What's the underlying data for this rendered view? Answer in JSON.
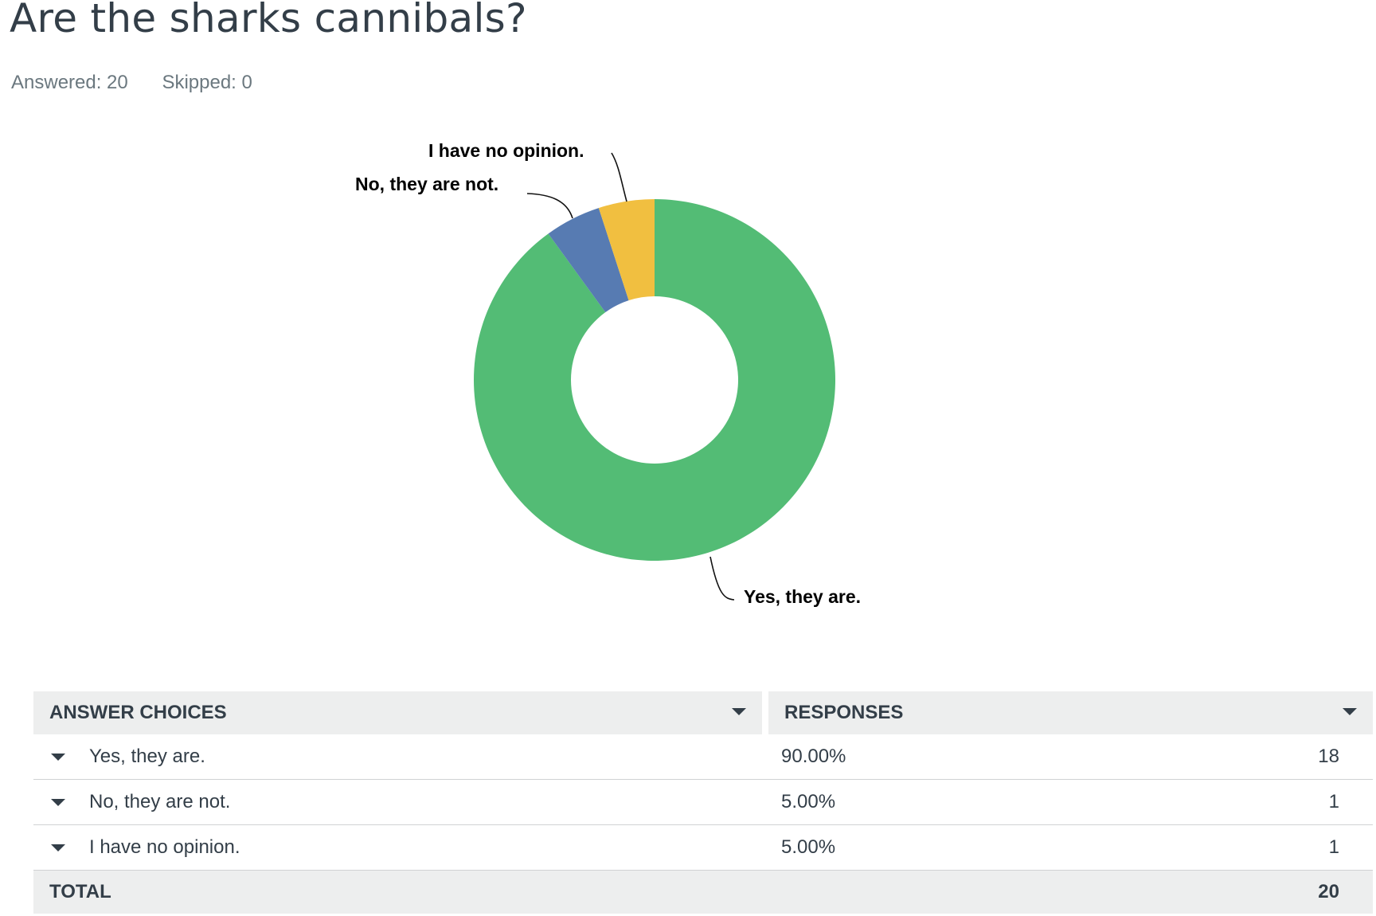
{
  "question": {
    "title": "Are the sharks cannibals?",
    "answered": "Answered: 20",
    "skipped": "Skipped: 0"
  },
  "colors": {
    "green": "#53bc75",
    "blue": "#577bb2",
    "yellow": "#f1bf40"
  },
  "chart_data": {
    "type": "pie",
    "donut": true,
    "categories": [
      "Yes, they are.",
      "No, they are not.",
      "I have no opinion."
    ],
    "values": [
      90,
      5,
      5
    ],
    "counts": [
      18,
      1,
      1
    ],
    "colors": [
      "#53bc75",
      "#577bb2",
      "#f1bf40"
    ]
  },
  "table": {
    "col_choices": "ANSWER CHOICES",
    "col_responses": "RESPONSES",
    "rows": [
      {
        "label": "Yes, they are.",
        "pct": "90.00%",
        "count": "18"
      },
      {
        "label": "No, they are not.",
        "pct": "5.00%",
        "count": "1"
      },
      {
        "label": "I have no opinion.",
        "pct": "5.00%",
        "count": "1"
      }
    ],
    "total_label": "TOTAL",
    "total_count": "20"
  }
}
